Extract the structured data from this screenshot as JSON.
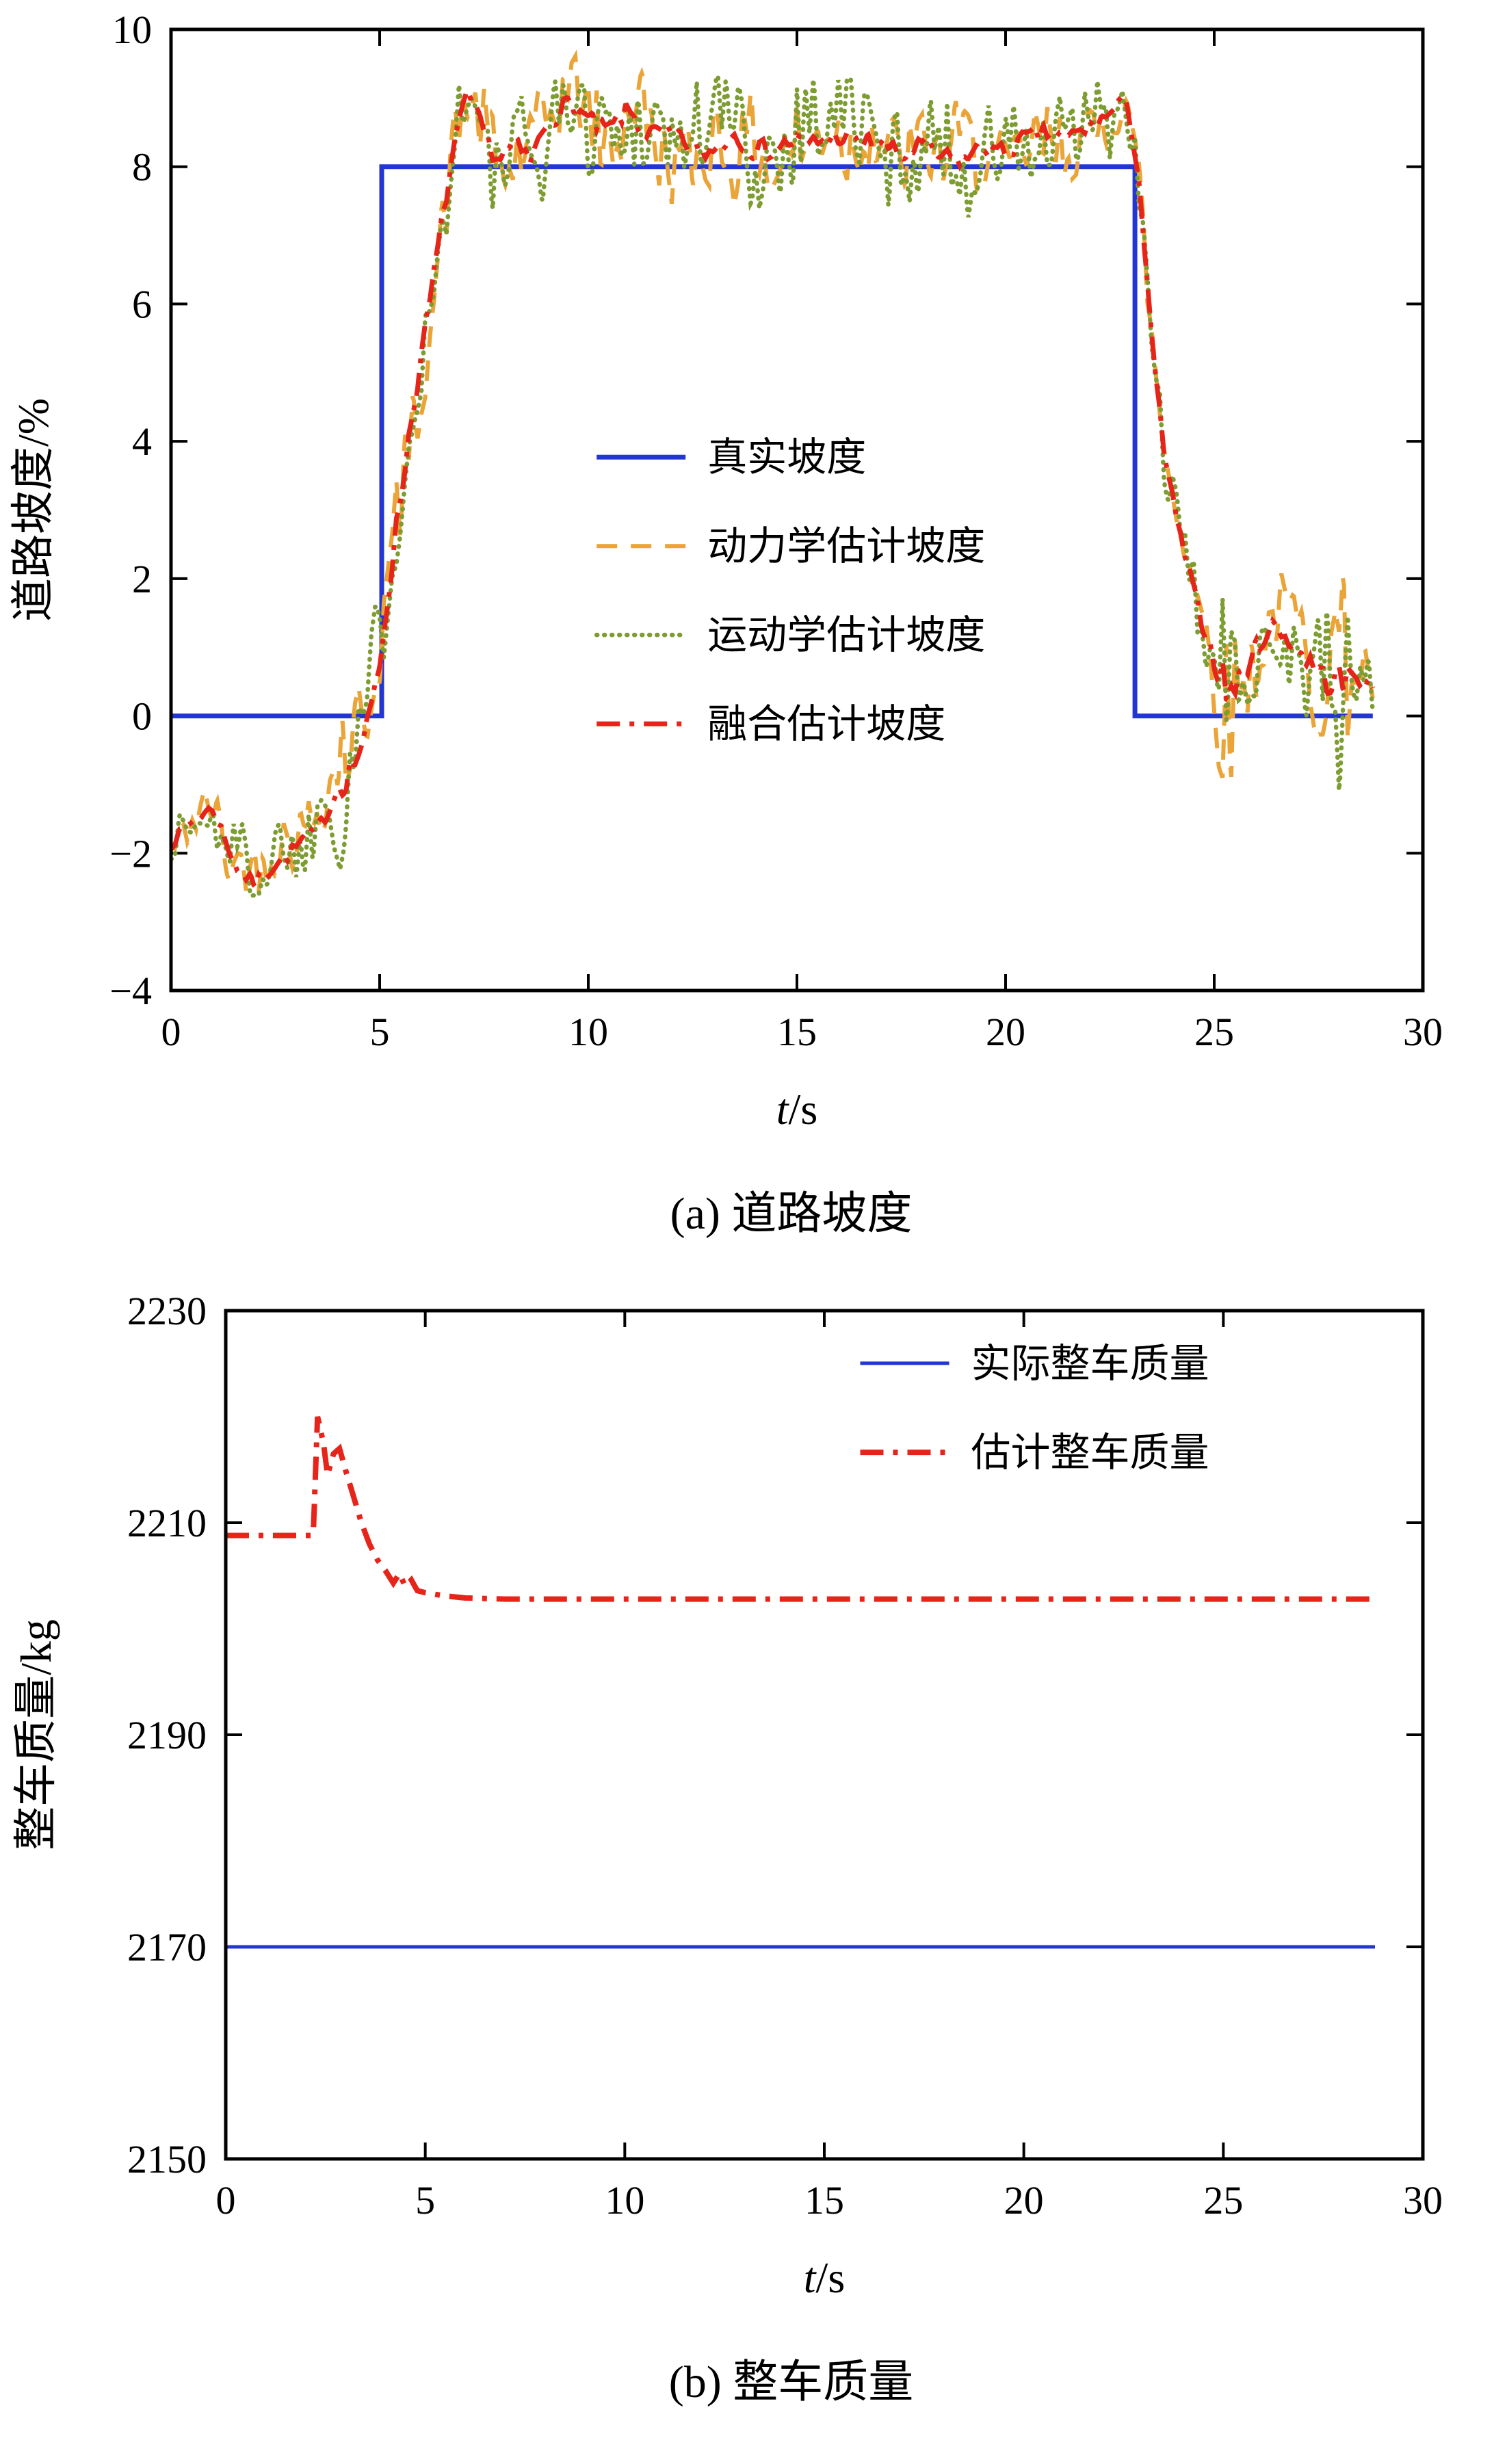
{
  "page": {
    "background": "#ffffff"
  },
  "figures": [
    {
      "caption": "(a) 道路坡度"
    },
    {
      "caption": "(b) 整车质量"
    }
  ],
  "chart_data": [
    {
      "type": "line",
      "title": "(a) 道路坡度",
      "xlabel": "t/s",
      "ylabel": "道路坡度/%",
      "xlim": [
        0,
        30
      ],
      "ylim": [
        -4,
        10
      ],
      "xticks": [
        0,
        5,
        10,
        15,
        20,
        25,
        30
      ],
      "yticks": [
        -4,
        -2,
        0,
        2,
        4,
        6,
        8,
        10
      ],
      "grid": false,
      "legend": {
        "x": 0.34,
        "y": 0.445,
        "row_h": 0.0925,
        "entries": [
          {
            "series": 0,
            "label": "真实坡度"
          },
          {
            "series": 1,
            "label": "动力学估计坡度"
          },
          {
            "series": 2,
            "label": "运动学估计坡度"
          },
          {
            "series": 3,
            "label": "融合估计坡度"
          }
        ]
      },
      "series": [
        {
          "name": "真实坡度",
          "color": "#2236d2",
          "style": "solid",
          "width": 7,
          "points": [
            [
              0,
              0
            ],
            [
              5.05,
              0
            ],
            [
              5.05,
              8
            ],
            [
              23.1,
              8
            ],
            [
              23.1,
              0
            ],
            [
              28.8,
              0
            ]
          ]
        },
        {
          "name": "动力学估计坡度",
          "color": "#eaa437",
          "style": "dashed",
          "width": 6,
          "seed": 42,
          "amp_scale": 0.95,
          "trend": [
            [
              0,
              -1.9,
              0.45
            ],
            [
              0.5,
              -1.5,
              0.5
            ],
            [
              1,
              -1.3,
              0.55
            ],
            [
              1.3,
              -1.8,
              0.6
            ],
            [
              1.6,
              -2.2,
              0.6
            ],
            [
              2,
              -2.4,
              0.55
            ],
            [
              2.5,
              -2.1,
              0.6
            ],
            [
              3,
              -1.9,
              0.6
            ],
            [
              3.5,
              -1.6,
              0.6
            ],
            [
              3.9,
              -1.2,
              0.7
            ],
            [
              4.15,
              -0.9,
              1.7
            ],
            [
              4.4,
              -0.6,
              1.2
            ],
            [
              4.7,
              -0.1,
              0.9
            ],
            [
              5,
              0.8,
              0.8
            ],
            [
              5.3,
              2.2,
              0.9
            ],
            [
              5.7,
              4,
              0.9
            ],
            [
              6,
              5.2,
              0.8
            ],
            [
              6.4,
              6.8,
              0.8
            ],
            [
              6.8,
              8.3,
              0.7
            ],
            [
              7.1,
              9,
              0.6
            ],
            [
              7.4,
              8.6,
              0.7
            ],
            [
              7.8,
              8.1,
              0.8
            ],
            [
              8.2,
              8.3,
              0.9
            ],
            [
              8.6,
              8,
              0.9
            ],
            [
              9,
              8.7,
              0.8
            ],
            [
              9.5,
              8.9,
              0.8
            ],
            [
              10,
              8.6,
              0.8
            ],
            [
              10.5,
              8.5,
              0.8
            ],
            [
              11,
              8.8,
              0.8
            ],
            [
              11.5,
              8.5,
              0.8
            ],
            [
              12,
              8.4,
              0.8
            ],
            [
              12.5,
              8.3,
              0.8
            ],
            [
              13,
              8.2,
              0.9
            ],
            [
              13.5,
              8.4,
              0.8
            ],
            [
              14,
              8.3,
              0.8
            ],
            [
              14.5,
              8.2,
              0.9
            ],
            [
              15,
              8.3,
              0.9
            ],
            [
              15.5,
              8.4,
              0.8
            ],
            [
              16,
              8.5,
              0.8
            ],
            [
              16.5,
              8.3,
              0.8
            ],
            [
              17,
              8.3,
              0.8
            ],
            [
              17.5,
              8.2,
              0.8
            ],
            [
              18,
              8.3,
              0.7
            ],
            [
              18.5,
              8.2,
              0.8
            ],
            [
              19,
              8.1,
              0.8
            ],
            [
              19.5,
              8.3,
              0.8
            ],
            [
              20,
              8.2,
              0.8
            ],
            [
              20.5,
              8.4,
              0.8
            ],
            [
              21,
              8.5,
              0.8
            ],
            [
              21.5,
              8.4,
              0.8
            ],
            [
              22,
              8.6,
              0.7
            ],
            [
              22.5,
              8.8,
              0.6
            ],
            [
              22.9,
              9,
              0.5
            ],
            [
              23.2,
              7.8,
              0.5
            ],
            [
              23.5,
              5.5,
              0.5
            ],
            [
              23.8,
              3.8,
              0.5
            ],
            [
              24.1,
              2.8,
              0.5
            ],
            [
              24.5,
              1.8,
              0.6
            ],
            [
              24.9,
              1,
              0.8
            ],
            [
              25.3,
              0.4,
              2.0
            ],
            [
              25.7,
              0.7,
              0.9
            ],
            [
              26,
              1,
              0.8
            ],
            [
              26.4,
              1.3,
              0.7
            ],
            [
              26.8,
              1.1,
              0.8
            ],
            [
              27.2,
              0.8,
              0.9
            ],
            [
              27.6,
              0.5,
              1
            ],
            [
              28,
              0.3,
              2.0
            ],
            [
              28.4,
              0.6,
              0.9
            ],
            [
              28.8,
              0.4,
              0.6
            ]
          ]
        },
        {
          "name": "运动学估计坡度",
          "color": "#7d9c31",
          "style": "dotted",
          "width": 6.5,
          "seed": 1337,
          "amp_scale": 1.15,
          "trend_ref": 1
        },
        {
          "name": "融合估计坡度",
          "color": "#e62419",
          "style": "dashdot",
          "width": 7,
          "seed": 7,
          "amp_scale": 0.22,
          "trend_ref": 1
        }
      ]
    },
    {
      "type": "line",
      "title": "(b) 整车质量",
      "xlabel": "t/s",
      "ylabel": "整车质量/kg",
      "xlim": [
        0,
        30
      ],
      "ylim": [
        2150,
        2230
      ],
      "xticks": [
        0,
        5,
        10,
        15,
        20,
        25,
        30
      ],
      "yticks": [
        2150,
        2170,
        2190,
        2210,
        2230
      ],
      "grid": false,
      "legend": {
        "x": 0.53,
        "y": 0.062,
        "row_h": 0.105,
        "entries": [
          {
            "series": 0,
            "label": "实际整车质量"
          },
          {
            "series": 1,
            "label": "估计整车质量"
          }
        ]
      },
      "series": [
        {
          "name": "实际整车质量",
          "color": "#2236d2",
          "style": "solid",
          "width": 5,
          "points": [
            [
              0,
              2170
            ],
            [
              28.8,
              2170
            ]
          ]
        },
        {
          "name": "估计整车质量",
          "color": "#e62419",
          "style": "dashdot",
          "width": 8,
          "points": [
            [
              0,
              2208.8
            ],
            [
              2.15,
              2208.8
            ],
            [
              2.2,
              2209.5
            ],
            [
              2.3,
              2220
            ],
            [
              2.45,
              2217.5
            ],
            [
              2.55,
              2214.5
            ],
            [
              2.7,
              2216.5
            ],
            [
              2.85,
              2217
            ],
            [
              3,
              2215
            ],
            [
              3.2,
              2212.5
            ],
            [
              3.4,
              2210
            ],
            [
              3.6,
              2208
            ],
            [
              3.8,
              2206.5
            ],
            [
              4,
              2205.5
            ],
            [
              4.2,
              2204.3
            ],
            [
              4.35,
              2205.2
            ],
            [
              4.5,
              2204
            ],
            [
              4.65,
              2204.6
            ],
            [
              4.8,
              2203.6
            ],
            [
              5,
              2203.4
            ],
            [
              5.5,
              2203.1
            ],
            [
              6,
              2202.9
            ],
            [
              7,
              2202.8
            ],
            [
              28.8,
              2202.8
            ]
          ]
        }
      ]
    }
  ]
}
